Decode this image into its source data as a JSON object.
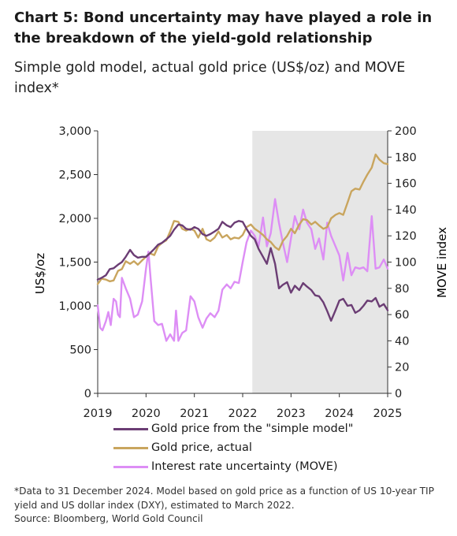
{
  "title": "Chart 5: Bond uncertainty may have played a role in the breakdown of the yield-gold relationship",
  "subtitle": "Simple gold model, actual gold price (US$/oz) and MOVE index*",
  "footnote": {
    "line1": "*Data to 31 December 2024. Model based on gold price as a function of US 10-year TIP",
    "line2": "yield and US dollar index (DXY), estimated to March 2022.",
    "source": "Source: Bloomberg, World Gold Council"
  },
  "colors": {
    "model": "#6b3d74",
    "actual": "#c9a55e",
    "move": "#dd8ef5",
    "shade": "#e6e6e6",
    "axis": "#333333"
  },
  "chart_data": {
    "type": "line",
    "shaded_region": {
      "from": 2022.2,
      "to": 2025.0
    },
    "x_axis": {
      "min": 2019,
      "max": 2025,
      "ticks": [
        "2019",
        "2020",
        "2021",
        "2022",
        "2023",
        "2024",
        "2025"
      ]
    },
    "y_left": {
      "label": "US$/oz",
      "min": 0,
      "max": 3000,
      "ticks": [
        "0",
        "500",
        "1,000",
        "1,500",
        "2,000",
        "2,500",
        "3,000"
      ]
    },
    "y_right": {
      "label": "MOVE index",
      "min": 0,
      "max": 200,
      "ticks": [
        "0",
        "20",
        "40",
        "60",
        "80",
        "100",
        "120",
        "140",
        "160",
        "180",
        "200"
      ]
    },
    "series": [
      {
        "name": "Gold price from the \"simple model\"",
        "axis": "left",
        "color": "#6b3d74",
        "points": [
          [
            2019.0,
            1300
          ],
          [
            2019.08,
            1320
          ],
          [
            2019.17,
            1350
          ],
          [
            2019.25,
            1420
          ],
          [
            2019.33,
            1430
          ],
          [
            2019.42,
            1470
          ],
          [
            2019.5,
            1500
          ],
          [
            2019.58,
            1560
          ],
          [
            2019.67,
            1640
          ],
          [
            2019.75,
            1580
          ],
          [
            2019.83,
            1550
          ],
          [
            2019.92,
            1560
          ],
          [
            2020.0,
            1560
          ],
          [
            2020.08,
            1600
          ],
          [
            2020.17,
            1650
          ],
          [
            2020.25,
            1700
          ],
          [
            2020.33,
            1720
          ],
          [
            2020.42,
            1760
          ],
          [
            2020.5,
            1800
          ],
          [
            2020.58,
            1870
          ],
          [
            2020.67,
            1930
          ],
          [
            2020.75,
            1920
          ],
          [
            2020.83,
            1880
          ],
          [
            2020.92,
            1870
          ],
          [
            2021.0,
            1900
          ],
          [
            2021.08,
            1880
          ],
          [
            2021.17,
            1820
          ],
          [
            2021.25,
            1800
          ],
          [
            2021.33,
            1820
          ],
          [
            2021.42,
            1850
          ],
          [
            2021.5,
            1880
          ],
          [
            2021.58,
            1960
          ],
          [
            2021.67,
            1920
          ],
          [
            2021.75,
            1900
          ],
          [
            2021.83,
            1950
          ],
          [
            2021.92,
            1970
          ],
          [
            2022.0,
            1960
          ],
          [
            2022.08,
            1880
          ],
          [
            2022.17,
            1800
          ],
          [
            2022.25,
            1760
          ],
          [
            2022.33,
            1650
          ],
          [
            2022.42,
            1560
          ],
          [
            2022.5,
            1480
          ],
          [
            2022.58,
            1660
          ],
          [
            2022.67,
            1480
          ],
          [
            2022.75,
            1200
          ],
          [
            2022.83,
            1240
          ],
          [
            2022.92,
            1270
          ],
          [
            2023.0,
            1150
          ],
          [
            2023.08,
            1230
          ],
          [
            2023.17,
            1180
          ],
          [
            2023.25,
            1260
          ],
          [
            2023.33,
            1220
          ],
          [
            2023.42,
            1180
          ],
          [
            2023.5,
            1120
          ],
          [
            2023.58,
            1110
          ],
          [
            2023.67,
            1040
          ],
          [
            2023.75,
            940
          ],
          [
            2023.83,
            830
          ],
          [
            2023.92,
            950
          ],
          [
            2024.0,
            1060
          ],
          [
            2024.08,
            1080
          ],
          [
            2024.17,
            1000
          ],
          [
            2024.25,
            1010
          ],
          [
            2024.33,
            920
          ],
          [
            2024.42,
            950
          ],
          [
            2024.5,
            1000
          ],
          [
            2024.58,
            1060
          ],
          [
            2024.67,
            1050
          ],
          [
            2024.75,
            1090
          ],
          [
            2024.83,
            990
          ],
          [
            2024.92,
            1020
          ],
          [
            2025.0,
            950
          ]
        ]
      },
      {
        "name": "Gold price, actual",
        "axis": "left",
        "color": "#c9a55e",
        "points": [
          [
            2019.0,
            1250
          ],
          [
            2019.08,
            1310
          ],
          [
            2019.17,
            1300
          ],
          [
            2019.25,
            1280
          ],
          [
            2019.33,
            1290
          ],
          [
            2019.42,
            1400
          ],
          [
            2019.5,
            1420
          ],
          [
            2019.58,
            1510
          ],
          [
            2019.67,
            1480
          ],
          [
            2019.75,
            1510
          ],
          [
            2019.83,
            1470
          ],
          [
            2019.92,
            1520
          ],
          [
            2020.0,
            1560
          ],
          [
            2020.08,
            1600
          ],
          [
            2020.17,
            1580
          ],
          [
            2020.25,
            1680
          ],
          [
            2020.33,
            1720
          ],
          [
            2020.42,
            1750
          ],
          [
            2020.5,
            1850
          ],
          [
            2020.58,
            1970
          ],
          [
            2020.67,
            1960
          ],
          [
            2020.75,
            1880
          ],
          [
            2020.83,
            1860
          ],
          [
            2020.92,
            1880
          ],
          [
            2021.0,
            1860
          ],
          [
            2021.08,
            1780
          ],
          [
            2021.17,
            1880
          ],
          [
            2021.25,
            1760
          ],
          [
            2021.33,
            1740
          ],
          [
            2021.42,
            1780
          ],
          [
            2021.5,
            1850
          ],
          [
            2021.58,
            1780
          ],
          [
            2021.67,
            1810
          ],
          [
            2021.75,
            1760
          ],
          [
            2021.83,
            1780
          ],
          [
            2021.92,
            1770
          ],
          [
            2022.0,
            1810
          ],
          [
            2022.08,
            1900
          ],
          [
            2022.17,
            1930
          ],
          [
            2022.25,
            1880
          ],
          [
            2022.33,
            1850
          ],
          [
            2022.42,
            1810
          ],
          [
            2022.5,
            1760
          ],
          [
            2022.58,
            1730
          ],
          [
            2022.67,
            1670
          ],
          [
            2022.75,
            1640
          ],
          [
            2022.83,
            1740
          ],
          [
            2022.92,
            1800
          ],
          [
            2023.0,
            1880
          ],
          [
            2023.08,
            1830
          ],
          [
            2023.17,
            1930
          ],
          [
            2023.25,
            1990
          ],
          [
            2023.33,
            1980
          ],
          [
            2023.42,
            1930
          ],
          [
            2023.5,
            1960
          ],
          [
            2023.58,
            1920
          ],
          [
            2023.67,
            1880
          ],
          [
            2023.75,
            1900
          ],
          [
            2023.83,
            2000
          ],
          [
            2023.92,
            2040
          ],
          [
            2024.0,
            2060
          ],
          [
            2024.08,
            2040
          ],
          [
            2024.17,
            2180
          ],
          [
            2024.25,
            2310
          ],
          [
            2024.33,
            2340
          ],
          [
            2024.42,
            2330
          ],
          [
            2024.5,
            2420
          ],
          [
            2024.58,
            2500
          ],
          [
            2024.67,
            2580
          ],
          [
            2024.75,
            2730
          ],
          [
            2024.83,
            2670
          ],
          [
            2024.92,
            2630
          ],
          [
            2025.0,
            2620
          ]
        ]
      },
      {
        "name": "Interest rate uncertainty (MOVE)",
        "axis": "right",
        "color": "#dd8ef5",
        "points": [
          [
            2019.0,
            67
          ],
          [
            2019.05,
            50
          ],
          [
            2019.1,
            48
          ],
          [
            2019.17,
            55
          ],
          [
            2019.22,
            62
          ],
          [
            2019.27,
            52
          ],
          [
            2019.33,
            72
          ],
          [
            2019.38,
            70
          ],
          [
            2019.42,
            60
          ],
          [
            2019.46,
            58
          ],
          [
            2019.5,
            88
          ],
          [
            2019.58,
            80
          ],
          [
            2019.67,
            72
          ],
          [
            2019.75,
            58
          ],
          [
            2019.83,
            60
          ],
          [
            2019.92,
            70
          ],
          [
            2020.0,
            95
          ],
          [
            2020.05,
            108
          ],
          [
            2020.1,
            85
          ],
          [
            2020.17,
            55
          ],
          [
            2020.25,
            52
          ],
          [
            2020.33,
            53
          ],
          [
            2020.42,
            40
          ],
          [
            2020.5,
            45
          ],
          [
            2020.58,
            40
          ],
          [
            2020.62,
            63
          ],
          [
            2020.67,
            40
          ],
          [
            2020.75,
            46
          ],
          [
            2020.83,
            48
          ],
          [
            2020.92,
            74
          ],
          [
            2021.0,
            70
          ],
          [
            2021.08,
            58
          ],
          [
            2021.17,
            50
          ],
          [
            2021.25,
            57
          ],
          [
            2021.33,
            61
          ],
          [
            2021.42,
            58
          ],
          [
            2021.5,
            63
          ],
          [
            2021.58,
            79
          ],
          [
            2021.67,
            83
          ],
          [
            2021.75,
            80
          ],
          [
            2021.83,
            85
          ],
          [
            2021.92,
            84
          ],
          [
            2022.0,
            100
          ],
          [
            2022.08,
            115
          ],
          [
            2022.17,
            124
          ],
          [
            2022.25,
            120
          ],
          [
            2022.33,
            112
          ],
          [
            2022.42,
            134
          ],
          [
            2022.5,
            112
          ],
          [
            2022.58,
            122
          ],
          [
            2022.67,
            148
          ],
          [
            2022.75,
            130
          ],
          [
            2022.83,
            115
          ],
          [
            2022.92,
            100
          ],
          [
            2023.0,
            118
          ],
          [
            2023.08,
            135
          ],
          [
            2023.17,
            125
          ],
          [
            2023.25,
            140
          ],
          [
            2023.33,
            130
          ],
          [
            2023.42,
            125
          ],
          [
            2023.5,
            110
          ],
          [
            2023.58,
            118
          ],
          [
            2023.67,
            102
          ],
          [
            2023.75,
            130
          ],
          [
            2023.83,
            120
          ],
          [
            2023.92,
            112
          ],
          [
            2024.0,
            105
          ],
          [
            2024.08,
            86
          ],
          [
            2024.17,
            107
          ],
          [
            2024.25,
            90
          ],
          [
            2024.33,
            96
          ],
          [
            2024.42,
            95
          ],
          [
            2024.5,
            96
          ],
          [
            2024.58,
            93
          ],
          [
            2024.67,
            135
          ],
          [
            2024.75,
            95
          ],
          [
            2024.83,
            96
          ],
          [
            2024.92,
            102
          ],
          [
            2025.0,
            95
          ]
        ]
      }
    ]
  }
}
